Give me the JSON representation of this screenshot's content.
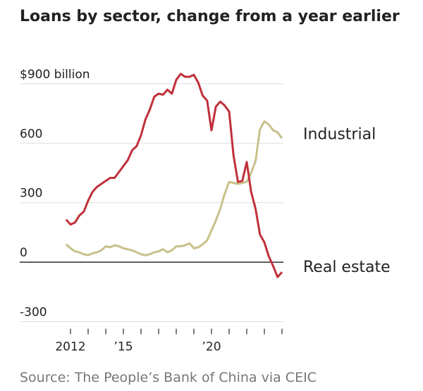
{
  "chart_data": {
    "type": "line",
    "title": "Loans by sector, change from a year earlier",
    "source": "Source: The People’s Bank of China via CEIC",
    "x": [
      2011.75,
      2012,
      2012.25,
      2012.5,
      2012.75,
      2013,
      2013.25,
      2013.5,
      2013.75,
      2014,
      2014.25,
      2014.5,
      2014.75,
      2015,
      2015.25,
      2015.5,
      2015.75,
      2016,
      2016.25,
      2016.5,
      2016.75,
      2017,
      2017.25,
      2017.5,
      2017.75,
      2018,
      2018.25,
      2018.5,
      2018.75,
      2019,
      2019.25,
      2019.5,
      2019.75,
      2020,
      2020.25,
      2020.5,
      2020.75,
      2021,
      2021.25,
      2021.5,
      2021.75,
      2022,
      2022.25,
      2022.5,
      2022.75,
      2023,
      2023.25,
      2023.5,
      2023.75,
      2024
    ],
    "series": [
      {
        "name": "Industrial",
        "color": "#c9c08a",
        "values": [
          90,
          70,
          55,
          50,
          40,
          35,
          45,
          50,
          60,
          80,
          75,
          85,
          80,
          70,
          65,
          60,
          50,
          40,
          35,
          40,
          50,
          55,
          65,
          50,
          60,
          80,
          80,
          85,
          95,
          70,
          75,
          90,
          110,
          160,
          210,
          270,
          345,
          405,
          400,
          395,
          400,
          405,
          450,
          510,
          670,
          710,
          695,
          665,
          655,
          625
        ]
      },
      {
        "name": "Real estate",
        "color": "#c0303a",
        "values": [
          215,
          190,
          200,
          235,
          255,
          310,
          355,
          380,
          395,
          410,
          425,
          425,
          455,
          485,
          515,
          565,
          585,
          640,
          720,
          770,
          835,
          850,
          845,
          870,
          850,
          920,
          950,
          935,
          935,
          945,
          905,
          840,
          815,
          665,
          785,
          810,
          790,
          760,
          540,
          405,
          410,
          505,
          355,
          270,
          140,
          100,
          30,
          -20,
          -75,
          -50
        ]
      }
    ],
    "xlim": [
      2011.6,
      2024.2
    ],
    "xticks": [
      {
        "value": 2012,
        "label": "2012"
      },
      {
        "value": 2015,
        "label": "’15"
      },
      {
        "value": 2020,
        "label": "’20"
      }
    ],
    "xminor_ticks": [
      2013,
      2014,
      2016,
      2017,
      2018,
      2019,
      2021,
      2022,
      2023,
      2024
    ],
    "ylim": [
      -330,
      960
    ],
    "yticks": [
      {
        "value": 900,
        "label": "$900 billion"
      },
      600,
      300,
      0,
      -300
    ],
    "grid": true
  }
}
